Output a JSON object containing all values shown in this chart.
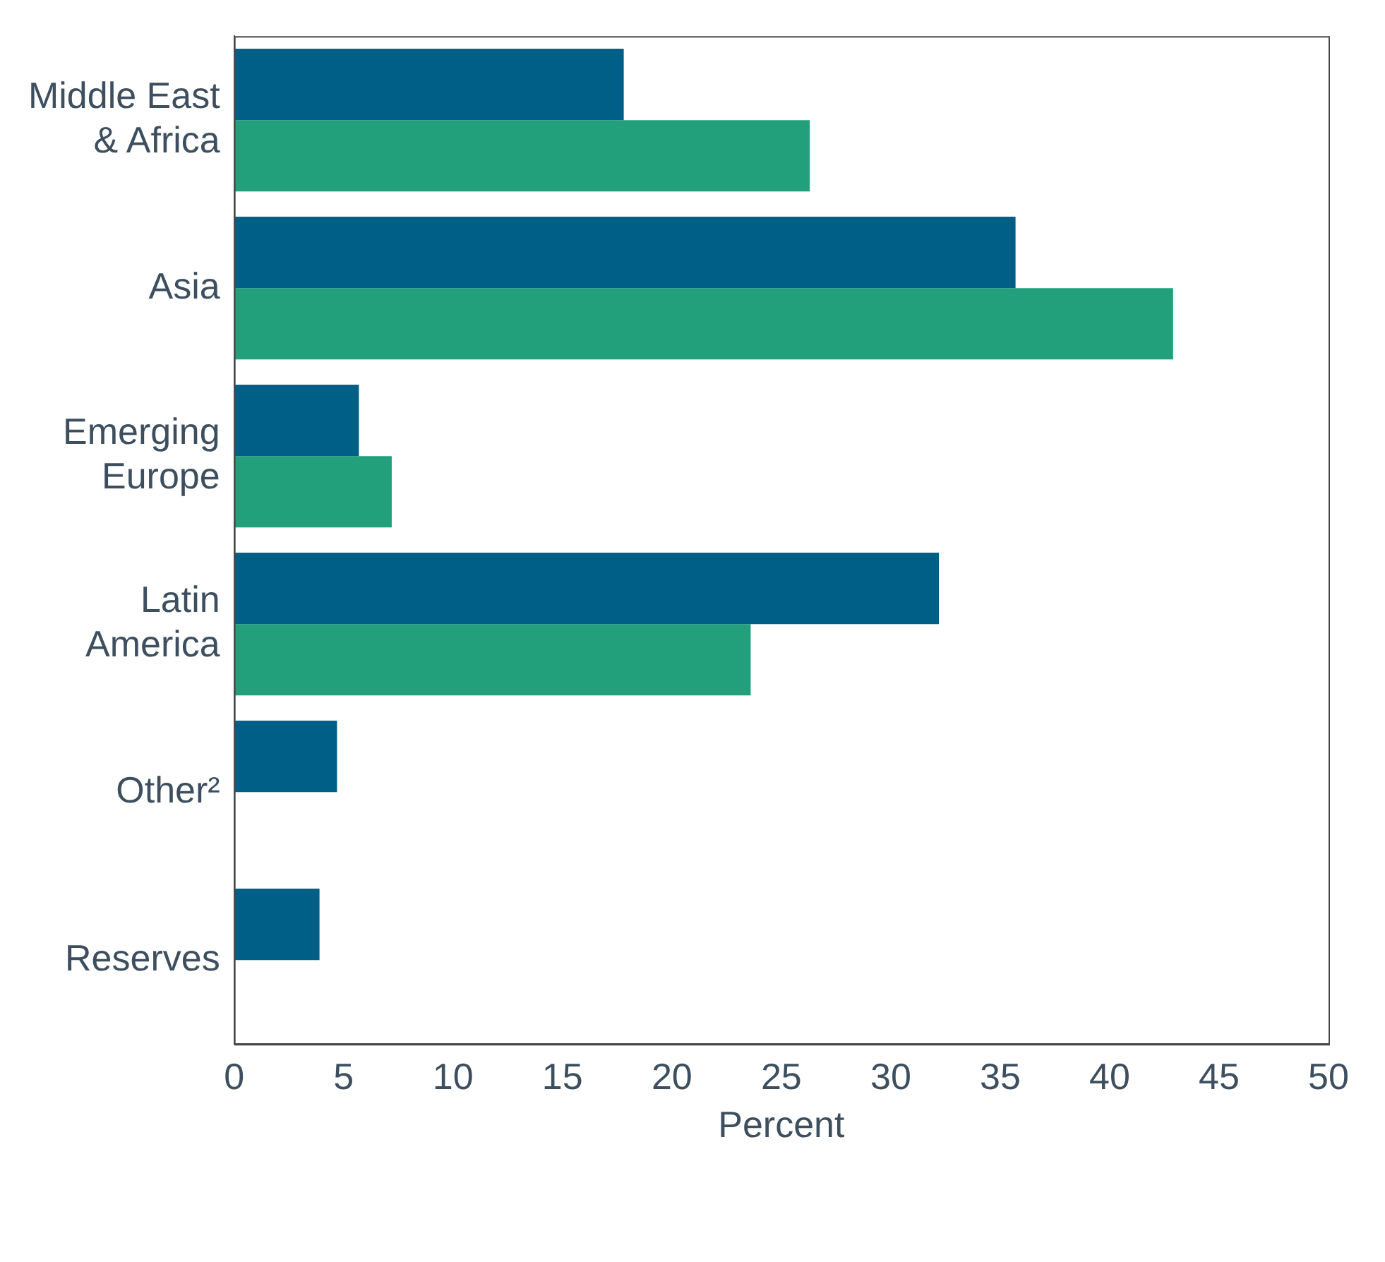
{
  "chart_data": {
    "type": "bar",
    "orientation": "horizontal",
    "categories": [
      "Middle East & Africa",
      "Asia",
      "Emerging Europe",
      "Latin America",
      "Other²",
      "Reserves"
    ],
    "series": [
      {
        "color": "#005f86",
        "values": [
          17.8,
          35.7,
          5.7,
          32.2,
          4.7,
          3.9
        ]
      },
      {
        "color": "#22a07c",
        "values": [
          26.3,
          42.9,
          7.2,
          23.6,
          null,
          null
        ]
      }
    ],
    "xlabel": "Percent",
    "xlim": [
      0,
      50
    ],
    "xticks": [
      0,
      5,
      10,
      15,
      20,
      25,
      30,
      35,
      40,
      45,
      50
    ],
    "grid": false,
    "legend": false
  }
}
